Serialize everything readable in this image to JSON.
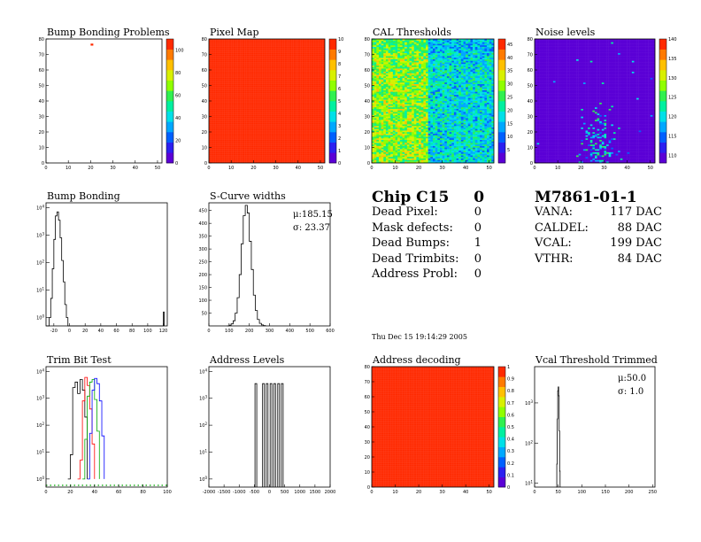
{
  "chart_data": [
    {
      "type": "heatmap",
      "id": "bump-bonding-problems",
      "title": "Bump Bonding Problems",
      "xlim": [
        0,
        52
      ],
      "ylim": [
        0,
        80
      ],
      "xticks": [
        0,
        10,
        20,
        30,
        40,
        50
      ],
      "yticks": [
        0,
        10,
        20,
        30,
        40,
        50,
        60,
        70,
        80
      ],
      "palette": "rainbow",
      "zlim": [
        0,
        110
      ],
      "zticks": [
        0,
        20,
        40,
        60,
        80,
        100
      ],
      "background": "#ffffff",
      "hot_pixels": [
        {
          "x": 20,
          "y": 76,
          "z": 110
        }
      ]
    },
    {
      "type": "heatmap",
      "id": "pixel-map",
      "title": "Pixel Map",
      "xlim": [
        0,
        52
      ],
      "ylim": [
        0,
        80
      ],
      "xticks": [
        0,
        10,
        20,
        30,
        40,
        50
      ],
      "yticks": [
        0,
        10,
        20,
        30,
        40,
        50,
        60,
        70,
        80
      ],
      "palette": "rainbow",
      "zlim": [
        0,
        10
      ],
      "zticks": [
        0,
        1,
        2,
        3,
        4,
        5,
        6,
        7,
        8,
        9,
        10
      ],
      "uniform_value": 10
    },
    {
      "type": "heatmap",
      "id": "cal-thresholds",
      "title": "CAL Thresholds",
      "xlim": [
        0,
        52
      ],
      "ylim": [
        0,
        80
      ],
      "xticks": [
        0,
        10,
        20,
        30,
        40,
        50
      ],
      "yticks": [
        0,
        10,
        20,
        30,
        40,
        50,
        60,
        70,
        80
      ],
      "palette": "rainbow",
      "zlim": [
        0,
        47
      ],
      "zticks": [
        5,
        10,
        15,
        20,
        25,
        30,
        35,
        40,
        45
      ],
      "description_mean": "left region ~30, right region ~20"
    },
    {
      "type": "heatmap",
      "id": "noise-levels",
      "title": "Noise levels",
      "xlim": [
        0,
        52
      ],
      "ylim": [
        0,
        80
      ],
      "xticks": [
        0,
        10,
        20,
        30,
        40,
        50
      ],
      "yticks": [
        0,
        10,
        20,
        30,
        40,
        50,
        60,
        70,
        80
      ],
      "palette": "rainbow",
      "zlim": [
        108,
        140
      ],
      "zticks": [
        110,
        115,
        120,
        125,
        130,
        135,
        140
      ]
    },
    {
      "type": "line",
      "id": "bump-bonding",
      "title": "Bump Bonding",
      "logy": true,
      "xlim": [
        -30,
        125
      ],
      "ylim": [
        0.5,
        15000
      ],
      "xticks": [
        -20,
        0,
        20,
        40,
        60,
        80,
        100,
        120
      ],
      "yticks": [
        1,
        10,
        100,
        1000,
        10000
      ],
      "x": [
        -30,
        -26,
        -24,
        -22,
        -20,
        -18,
        -16,
        -14,
        -12,
        -10,
        -8,
        -6,
        -4,
        -2,
        0,
        2,
        120,
        121
      ],
      "values": [
        0,
        1,
        5,
        60,
        700,
        5000,
        7000,
        3500,
        800,
        120,
        20,
        3,
        1,
        0,
        0,
        0,
        1.6,
        0
      ]
    },
    {
      "type": "line",
      "id": "s-curve-widths",
      "title": "S-Curve widths",
      "xlim": [
        0,
        600
      ],
      "ylim": [
        0,
        480
      ],
      "xticks": [
        0,
        100,
        200,
        300,
        400,
        500,
        600
      ],
      "yticks": [
        50,
        100,
        150,
        200,
        250,
        300,
        350,
        400,
        450
      ],
      "stats": {
        "mu": "185.15",
        "sigma": "23.37"
      },
      "x": [
        90,
        100,
        110,
        120,
        130,
        140,
        150,
        160,
        170,
        180,
        190,
        200,
        210,
        220,
        230,
        240,
        250,
        260,
        270,
        280
      ],
      "values": [
        0,
        3,
        8,
        20,
        50,
        110,
        200,
        320,
        430,
        470,
        440,
        330,
        220,
        120,
        60,
        25,
        10,
        4,
        1,
        0
      ]
    },
    {
      "type": "line",
      "id": "trim-bit-test",
      "title": "Trim Bit Test",
      "logy": true,
      "xlim": [
        0,
        100
      ],
      "ylim": [
        0.5,
        15000
      ],
      "xticks": [
        0,
        20,
        40,
        60,
        80,
        100
      ],
      "yticks": [
        1,
        10,
        100,
        1000,
        10000
      ],
      "series": [
        {
          "name": "",
          "color": "#000000",
          "x": [
            18,
            20,
            22,
            24,
            26,
            28,
            30,
            32,
            34
          ],
          "values": [
            1,
            8,
            2500,
            4000,
            1500,
            5000,
            2000,
            200,
            1
          ]
        },
        {
          "name": "",
          "color": "#ff0000",
          "x": [
            26,
            28,
            30,
            32,
            34,
            36,
            38,
            40
          ],
          "values": [
            1,
            5,
            800,
            6000,
            3000,
            400,
            20,
            1
          ]
        },
        {
          "name": "",
          "color": "#00aa00",
          "x": [
            30,
            32,
            34,
            36,
            38,
            40,
            42,
            44
          ],
          "values": [
            1,
            30,
            1200,
            4000,
            5000,
            900,
            60,
            1
          ]
        },
        {
          "name": "",
          "color": "#0000ff",
          "x": [
            34,
            36,
            38,
            40,
            42,
            44,
            46,
            48
          ],
          "values": [
            1,
            50,
            2000,
            5500,
            3500,
            800,
            40,
            1
          ]
        }
      ]
    },
    {
      "type": "line",
      "id": "address-levels",
      "title": "Address Levels",
      "logy": true,
      "xlim": [
        -2000,
        2000
      ],
      "ylim": [
        0.5,
        15000
      ],
      "xticks": [
        -2000,
        -1500,
        -1000,
        -500,
        0,
        500,
        1000,
        1500,
        2000
      ],
      "yticks": [
        1,
        10,
        100,
        1000,
        10000
      ],
      "peaks_x": [
        -450,
        -200,
        -80,
        50,
        170,
        300,
        420
      ],
      "peak_value": 3500
    },
    {
      "type": "heatmap",
      "id": "address-decoding",
      "title": "Address decoding",
      "xlim": [
        0,
        52
      ],
      "ylim": [
        0,
        80
      ],
      "xticks": [
        0,
        10,
        20,
        30,
        40,
        50
      ],
      "yticks": [
        0,
        10,
        20,
        30,
        40,
        50,
        60,
        70,
        80
      ],
      "palette": "rainbow",
      "zlim": [
        0,
        1
      ],
      "zticks": [
        0,
        0.1,
        0.2,
        0.3,
        0.4,
        0.5,
        0.6,
        0.7,
        0.8,
        0.9,
        1
      ],
      "uniform_value": 1
    },
    {
      "type": "line",
      "id": "vcal-threshold-trimmed",
      "title": "Vcal Threshold Trimmed",
      "logy": true,
      "xlim": [
        0,
        255
      ],
      "ylim": [
        8,
        8000
      ],
      "xticks": [
        0,
        50,
        100,
        150,
        200,
        250
      ],
      "yticks": [
        10,
        100,
        1000
      ],
      "stats": {
        "mu": "50.0",
        "sigma": "1.0"
      },
      "x": [
        46,
        47,
        48,
        49,
        50,
        51,
        52,
        53,
        54
      ],
      "values": [
        8,
        30,
        400,
        2000,
        2500,
        1500,
        200,
        20,
        8
      ]
    }
  ],
  "chip": {
    "title": "Chip C15",
    "id": "0",
    "rows": [
      {
        "label": "Dead Pixel:",
        "value": "0"
      },
      {
        "label": "Mask defects:",
        "value": "0"
      },
      {
        "label": "Dead Bumps:",
        "value": "1"
      },
      {
        "label": "Dead Trimbits:",
        "value": "0"
      },
      {
        "label": "Address Probl:",
        "value": "0"
      }
    ]
  },
  "module": {
    "title": "M7861-01-1",
    "rows": [
      {
        "label": "VANA:",
        "value": "117 DAC"
      },
      {
        "label": "CALDEL:",
        "value": "88 DAC"
      },
      {
        "label": "VCAL:",
        "value": "199 DAC"
      },
      {
        "label": "VTHR:",
        "value": "84 DAC"
      }
    ]
  },
  "timestamp": "Thu Dec 15 19:14:29 2005"
}
